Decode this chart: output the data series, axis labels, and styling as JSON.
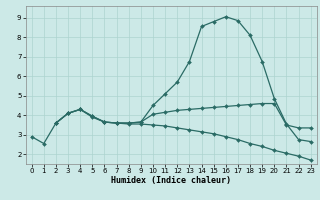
{
  "xlabel": "Humidex (Indice chaleur)",
  "xlim": [
    -0.5,
    23.5
  ],
  "ylim": [
    1.5,
    9.6
  ],
  "yticks": [
    2,
    3,
    4,
    5,
    6,
    7,
    8,
    9
  ],
  "xticks": [
    0,
    1,
    2,
    3,
    4,
    5,
    6,
    7,
    8,
    9,
    10,
    11,
    12,
    13,
    14,
    15,
    16,
    17,
    18,
    19,
    20,
    21,
    22,
    23
  ],
  "bg_color": "#cce9e7",
  "line_color": "#2a6b65",
  "grid_color": "#add4d0",
  "line1": {
    "x": [
      0,
      1,
      2,
      3,
      4,
      5,
      6,
      7,
      8,
      9,
      10,
      11,
      12,
      13,
      14,
      15,
      16,
      17,
      18,
      19,
      20,
      21,
      22,
      23
    ],
    "y": [
      2.9,
      2.55,
      3.6,
      4.1,
      4.3,
      3.9,
      3.65,
      3.6,
      3.6,
      3.65,
      4.5,
      5.1,
      5.7,
      6.75,
      8.55,
      8.8,
      9.05,
      8.85,
      8.1,
      6.75,
      4.85,
      3.55,
      2.75,
      2.65
    ]
  },
  "line2": {
    "x": [
      2,
      3,
      4,
      5,
      6,
      7,
      8,
      9,
      10,
      11,
      12,
      13,
      14,
      15,
      16,
      17,
      18,
      19,
      20,
      21,
      22,
      23
    ],
    "y": [
      3.6,
      4.1,
      4.3,
      3.95,
      3.65,
      3.6,
      3.6,
      3.65,
      4.05,
      4.15,
      4.25,
      4.3,
      4.35,
      4.4,
      4.45,
      4.5,
      4.55,
      4.6,
      4.6,
      3.5,
      3.35,
      3.35
    ]
  },
  "line3": {
    "x": [
      2,
      3,
      4,
      5,
      6,
      7,
      8,
      9,
      10,
      11,
      12,
      13,
      14,
      15,
      16,
      17,
      18,
      19,
      20,
      21,
      22,
      23
    ],
    "y": [
      3.6,
      4.1,
      4.3,
      3.95,
      3.65,
      3.6,
      3.55,
      3.55,
      3.5,
      3.45,
      3.35,
      3.25,
      3.15,
      3.05,
      2.9,
      2.75,
      2.55,
      2.4,
      2.2,
      2.05,
      1.9,
      1.7
    ]
  }
}
